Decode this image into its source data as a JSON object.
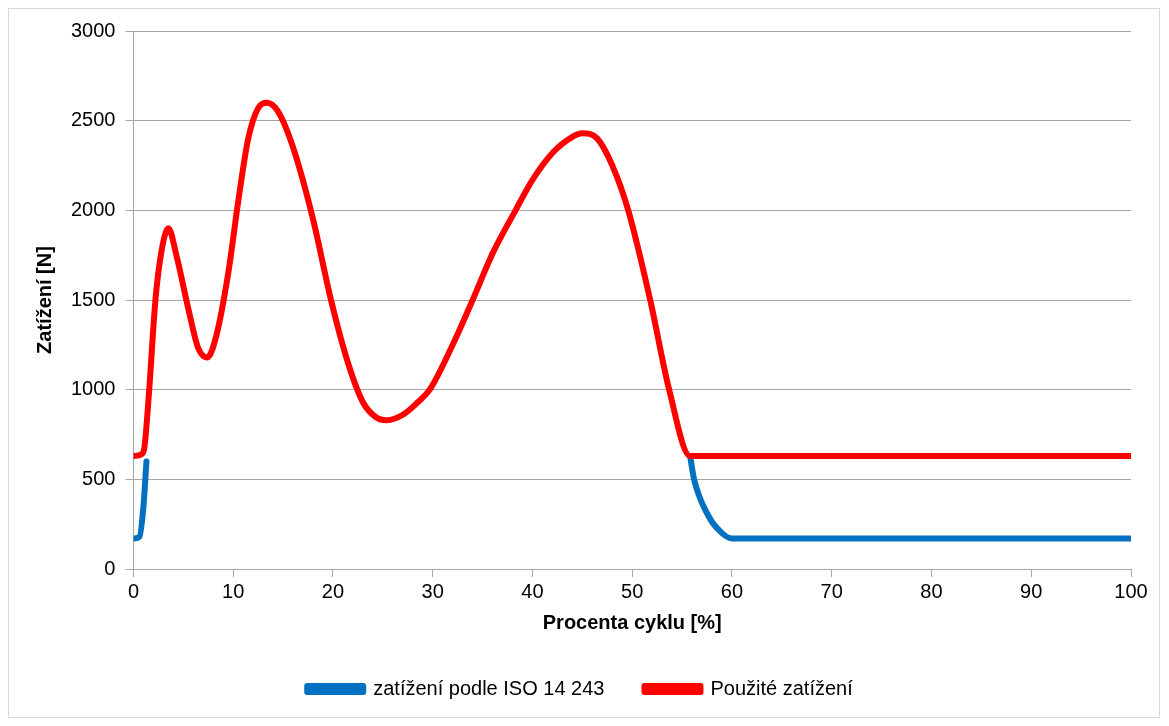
{
  "chart_data": {
    "type": "line",
    "xlabel": "Procenta cyklu [%]",
    "ylabel": "Zatížení [N]",
    "xlim": [
      0,
      100
    ],
    "xticks": [
      0,
      10,
      20,
      30,
      40,
      50,
      60,
      70,
      80,
      90,
      100
    ],
    "ylim": [
      0,
      3000
    ],
    "yticks": [
      0,
      500,
      1000,
      1500,
      2000,
      2500,
      3000
    ],
    "grid": "y",
    "legend": "bottom",
    "marker": "none",
    "line_style": "solid",
    "series": [
      {
        "name": "zatížení podle ISO 14 243",
        "color": "#0070c0",
        "x": [
          0,
          0.6,
          1.0,
          1.3,
          30,
          55.8,
          56.2,
          57.7,
          59,
          60,
          100
        ],
        "values": [
          170,
          180,
          350,
          600,
          null,
          630,
          500,
          290,
          200,
          170,
          170
        ]
      },
      {
        "name": "Použité zatížení",
        "color": "#ff0000",
        "x": [
          0,
          0.8,
          1.1,
          1.55,
          2.2,
          2.8,
          3.5,
          4.3,
          5.5,
          6.5,
          7.4,
          8.3,
          9.5,
          10.5,
          11.5,
          12.5,
          13.4,
          14.5,
          16,
          18,
          19.8,
          21.5,
          23,
          24.5,
          25.4,
          27,
          28.5,
          29.7,
          32,
          34,
          36,
          38.3,
          40,
          42,
          44,
          45,
          46.5,
          48,
          49.6,
          51.8,
          53.7,
          55.8,
          100
        ],
        "values": [
          630,
          640,
          680,
          980,
          1500,
          1770,
          1900,
          1750,
          1450,
          1230,
          1180,
          1300,
          1650,
          2050,
          2400,
          2570,
          2600,
          2550,
          2350,
          1950,
          1500,
          1150,
          930,
          840,
          830,
          860,
          930,
          1000,
          1250,
          1500,
          1760,
          2000,
          2170,
          2320,
          2410,
          2430,
          2400,
          2250,
          2000,
          1500,
          1000,
          630,
          630
        ]
      }
    ]
  }
}
